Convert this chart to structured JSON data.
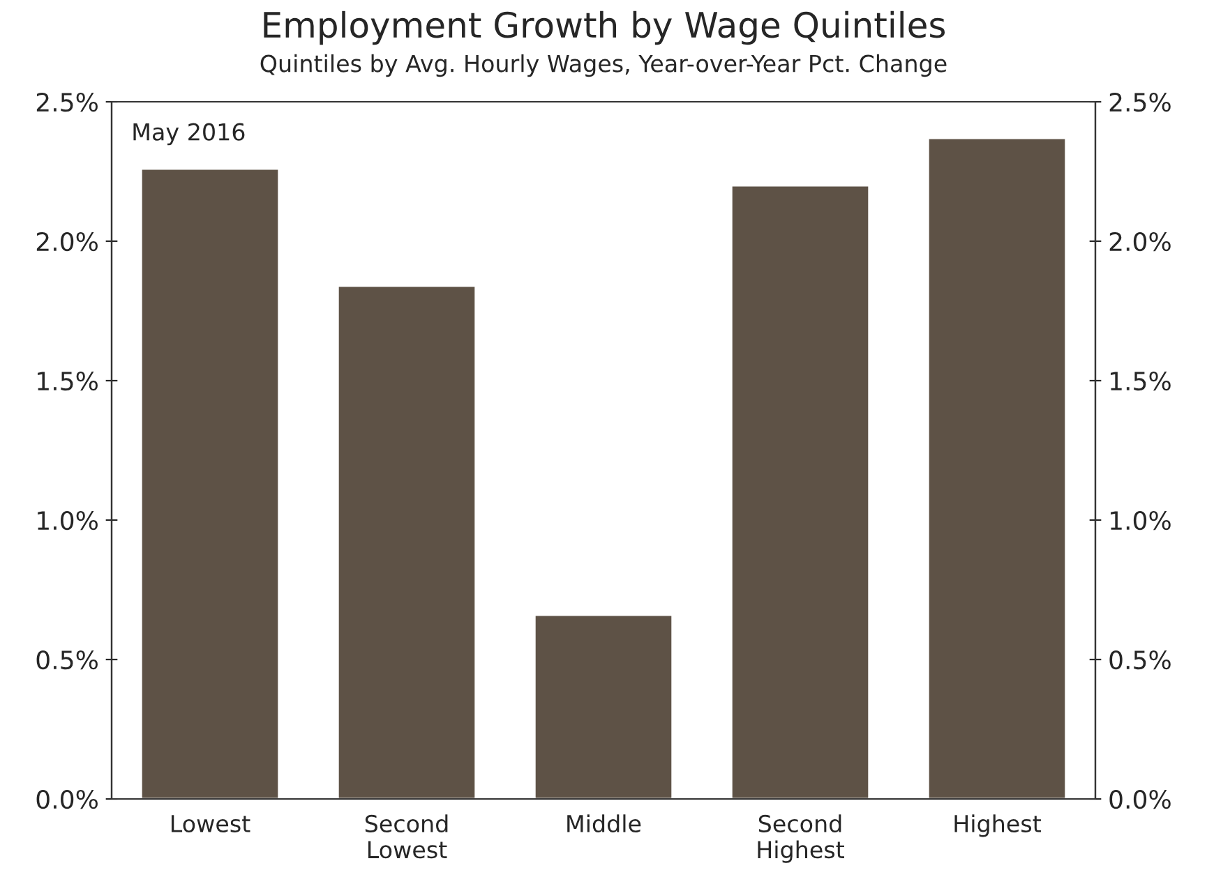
{
  "chart_data": {
    "type": "bar",
    "title": "Employment Growth by Wage Quintiles",
    "subtitle": "Quintiles by Avg. Hourly Wages, Year-over-Year Pct. Change",
    "categories": [
      "Lowest",
      "Second\nLowest",
      "Middle",
      "Second\nHighest",
      "Highest"
    ],
    "values": [
      2.26,
      1.84,
      0.66,
      2.2,
      2.37
    ],
    "color": "#5e5246",
    "ylim": [
      0,
      2.5
    ],
    "yticks": [
      {
        "value": 0,
        "label": "0.0%"
      },
      {
        "value": 0.5,
        "label": "0.5%"
      },
      {
        "value": 1,
        "label": "1.0%"
      },
      {
        "value": 1.5,
        "label": "1.5%"
      },
      {
        "value": 2,
        "label": "2.0%"
      },
      {
        "value": 2.5,
        "label": "2.5%"
      }
    ],
    "y2lim": [
      0,
      2.5
    ],
    "y2ticks": [
      {
        "value": 0,
        "label": "0.0%"
      },
      {
        "value": 0.5,
        "label": "0.5%"
      },
      {
        "value": 1,
        "label": "1.0%"
      },
      {
        "value": 1.5,
        "label": "1.5%"
      },
      {
        "value": 2,
        "label": "2.0%"
      },
      {
        "value": 2.5,
        "label": "2.5%"
      }
    ],
    "annotations": [
      "May 2016"
    ],
    "grid": false,
    "legend": false
  }
}
